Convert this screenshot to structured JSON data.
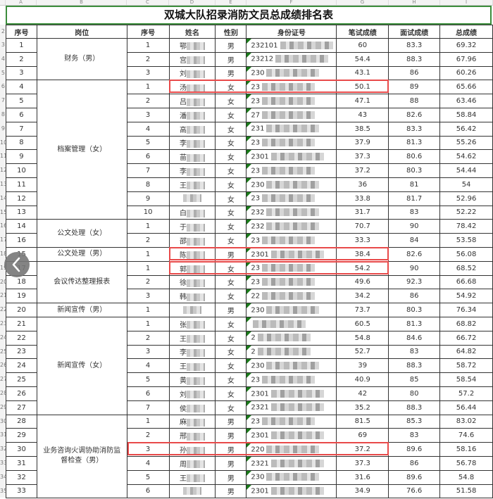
{
  "title": "双城大队招录消防文员总成绩排名表",
  "column_letters": [
    "A",
    "B",
    "C",
    "D",
    "E",
    "F",
    "G",
    "H",
    "I"
  ],
  "headers": [
    "序号",
    "岗位",
    "序号",
    "姓名",
    "性别",
    "身份证号",
    "笔试成绩",
    "面试成绩",
    "总成绩"
  ],
  "groups": [
    {
      "position": "财务（男）",
      "rows": [
        [
          "1",
          "1",
          "鄂",
          "男",
          "232101",
          "60",
          "83.3",
          "69.32"
        ],
        [
          "2",
          "2",
          "宫",
          "男",
          "23212",
          "54.4",
          "88.3",
          "67.96"
        ],
        [
          "3",
          "3",
          "刘",
          "男",
          "230",
          "43.1",
          "86",
          "60.26"
        ]
      ]
    },
    {
      "position": "档案管理（女）",
      "rows": [
        [
          "4",
          "1",
          "汤",
          "女",
          "23",
          "50.1",
          "89",
          "65.66"
        ],
        [
          "5",
          "2",
          "吕",
          "女",
          "23",
          "47.1",
          "88",
          "63.46"
        ],
        [
          "6",
          "3",
          "潘",
          "女",
          "27",
          "43",
          "82.6",
          "58.84"
        ],
        [
          "7",
          "4",
          "高",
          "女",
          "231",
          "38.5",
          "83.3",
          "56.42"
        ],
        [
          "8",
          "5",
          "李",
          "女",
          "23",
          "37.9",
          "81.3",
          "55.26"
        ],
        [
          "9",
          "6",
          "苗",
          "女",
          "2301",
          "37.3",
          "80.6",
          "54.62"
        ],
        [
          "10",
          "7",
          "李",
          "女",
          "23",
          "37.2",
          "80.3",
          "54.44"
        ],
        [
          "11",
          "8",
          "王",
          "女",
          "230",
          "36",
          "81",
          "54"
        ],
        [
          "12",
          "9",
          "",
          "女",
          "23",
          "33.8",
          "81.7",
          "52.96"
        ],
        [
          "13",
          "10",
          "白",
          "女",
          "232",
          "31.7",
          "83",
          "52.22"
        ]
      ]
    },
    {
      "position": "公文处理（女）",
      "rows": [
        [
          "14",
          "1",
          "于",
          "女",
          "232",
          "70.7",
          "90",
          "78.42"
        ],
        [
          "16",
          "2",
          "邵",
          "女",
          "23",
          "33.3",
          "84",
          "53.58"
        ]
      ]
    },
    {
      "position": "公文处理（男）",
      "rows": [
        [
          "15",
          "1",
          "陈",
          "男",
          "2301",
          "38.4",
          "82.6",
          "56.08"
        ]
      ]
    },
    {
      "position": "会议传达整理报表",
      "rows": [
        [
          "17",
          "1",
          "郭",
          "女",
          "23",
          "54.2",
          "90",
          "68.52"
        ],
        [
          "18",
          "2",
          "徐",
          "女",
          "23",
          "49.6",
          "92.3",
          "66.68"
        ],
        [
          "19",
          "3",
          "韩",
          "女",
          "22",
          "34.2",
          "86",
          "54.92"
        ]
      ]
    },
    {
      "position": "新闻宣传（男）",
      "rows": [
        [
          "20",
          "1",
          "",
          "男",
          "230",
          "73.7",
          "80.3",
          "76.34"
        ]
      ]
    },
    {
      "position": "新闻宣传（女）",
      "rows": [
        [
          "21",
          "1",
          "张",
          "女",
          "",
          "60.5",
          "81.3",
          "68.82"
        ],
        [
          "22",
          "2",
          "王",
          "女",
          "2",
          "54.8",
          "84.6",
          "66.72"
        ],
        [
          "23",
          "3",
          "李",
          "女",
          "2",
          "52.7",
          "83",
          "64.82"
        ],
        [
          "24",
          "4",
          "王",
          "女",
          "230",
          "39",
          "88.3",
          "58.72"
        ],
        [
          "25",
          "5",
          "黄",
          "女",
          "23",
          "40.9",
          "85",
          "58.54"
        ],
        [
          "26",
          "6",
          "刘",
          "女",
          "2301",
          "42",
          "80",
          "57.2"
        ],
        [
          "27",
          "7",
          "侯",
          "女",
          "2321",
          "35.2",
          "88.3",
          "56.44"
        ]
      ]
    },
    {
      "position": "业务咨询火调协助消防监督检查（男）",
      "rows": [
        [
          "28",
          "1",
          "麻",
          "男",
          "23",
          "81.5",
          "85.3",
          "83.02"
        ],
        [
          "29",
          "2",
          "邢",
          "男",
          "2301",
          "69",
          "83",
          "74.6"
        ],
        [
          "30",
          "3",
          "孙",
          "男",
          "220",
          "37.2",
          "89.6",
          "58.16"
        ],
        [
          "31",
          "4",
          "周",
          "男",
          "2321",
          "37.3",
          "86",
          "56.78"
        ],
        [
          "32",
          "5",
          "王",
          "男",
          "230",
          "31.6",
          "89.6",
          "54.8"
        ],
        [
          "33",
          "6",
          "",
          "男",
          "2301",
          "34.9",
          "76.6",
          "51.58"
        ]
      ]
    }
  ],
  "highlighted_rows": [
    "4",
    "15",
    "17",
    "30"
  ],
  "highlight_color": "#e84a4a",
  "back_icon": "chevron-left-icon"
}
